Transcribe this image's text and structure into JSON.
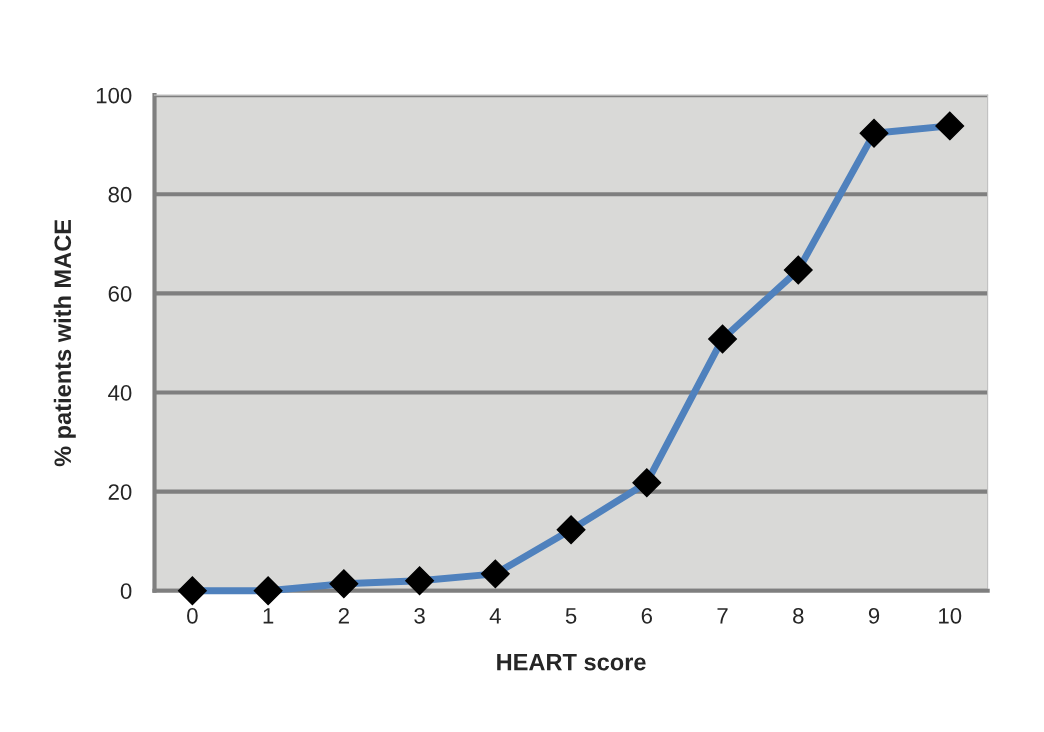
{
  "chart_data": {
    "type": "line",
    "xlabel": "HEART score",
    "ylabel": "% patients with MACE",
    "categories": [
      "0",
      "1",
      "2",
      "3",
      "4",
      "5",
      "6",
      "7",
      "8",
      "9",
      "10"
    ],
    "series": [
      {
        "color": "#4f81bd",
        "values": [
          0,
          0,
          1.4,
          2,
          3.4,
          12.3,
          21.8,
          50.8,
          64.7,
          92.3,
          93.8
        ]
      }
    ],
    "ylim": [
      0,
      100
    ],
    "yticks": [
      0,
      20,
      40,
      60,
      80,
      100
    ],
    "grid": "y",
    "marker": "diamond",
    "line_style": "solid",
    "legend": false
  }
}
